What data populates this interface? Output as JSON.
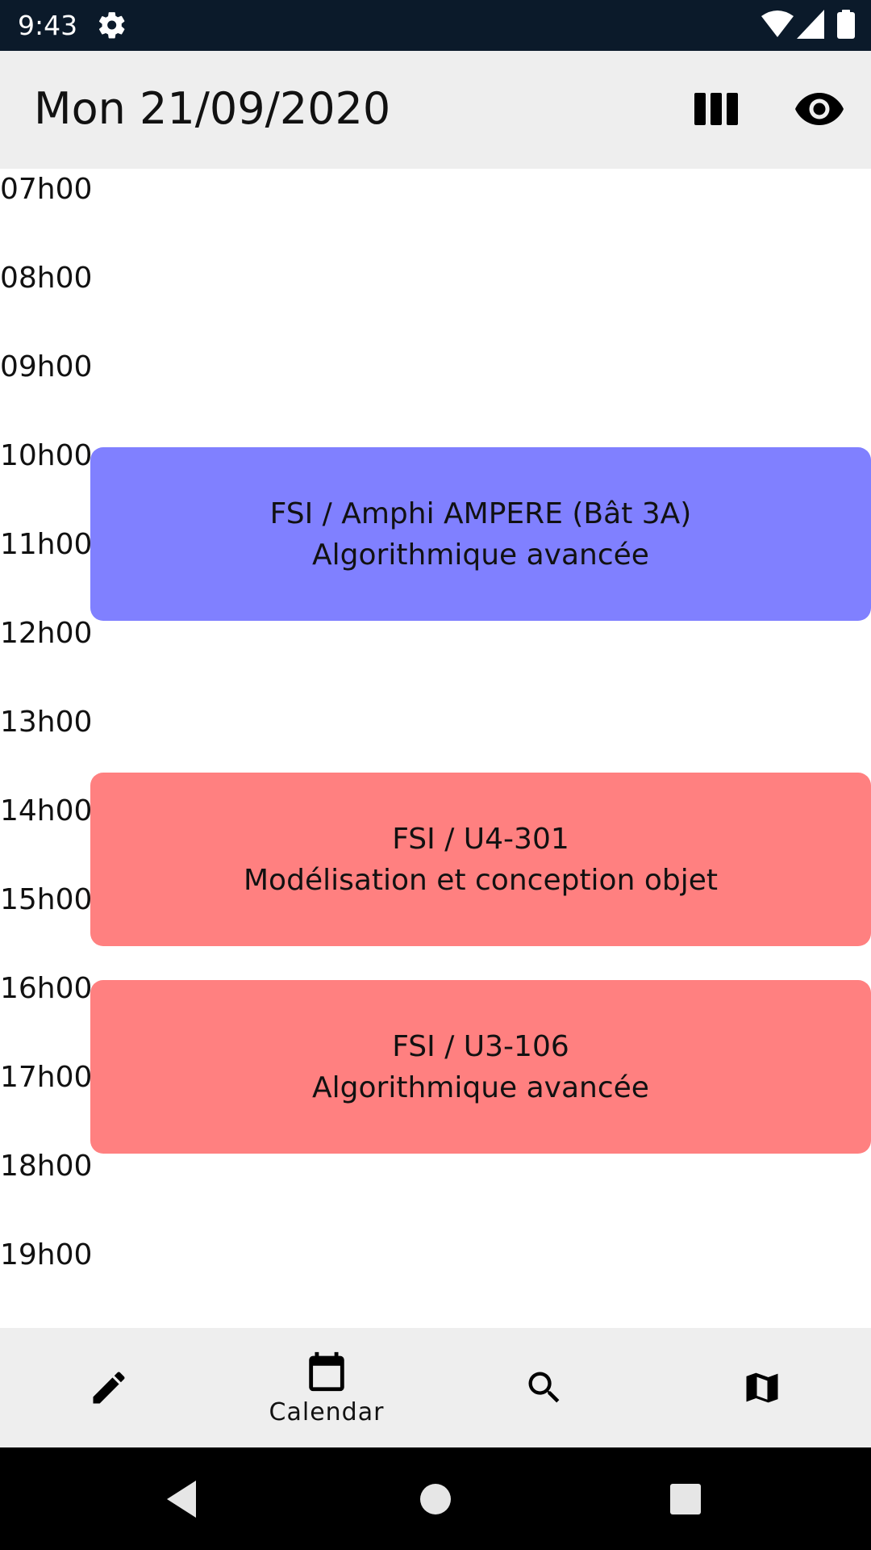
{
  "status_bar": {
    "time": "9:43",
    "icons": [
      "gear-icon",
      "wifi-icon",
      "signal-icon",
      "battery-icon"
    ]
  },
  "app_bar": {
    "title": "Mon 21/09/2020",
    "actions": [
      "columns-icon",
      "eye-icon"
    ]
  },
  "schedule": {
    "hours": [
      "07h00",
      "08h00",
      "09h00",
      "10h00",
      "11h00",
      "12h00",
      "13h00",
      "14h00",
      "15h00",
      "16h00",
      "17h00",
      "18h00",
      "19h00"
    ],
    "events": [
      {
        "room": "FSI / Amphi AMPERE (Bât 3A)",
        "course": "Algorithmique avancée",
        "color": "#8080ff"
      },
      {
        "room": "FSI / U4-301",
        "course": "Modélisation et conception objet",
        "color": "#ff8080"
      },
      {
        "room": "FSI / U3-106",
        "course": "Algorithmique avancée",
        "color": "#ff8080"
      }
    ]
  },
  "bottom_nav": {
    "items": [
      {
        "icon": "pencil-icon",
        "label": ""
      },
      {
        "icon": "calendar-icon",
        "label": "Calendar"
      },
      {
        "icon": "search-icon",
        "label": ""
      },
      {
        "icon": "map-icon",
        "label": ""
      }
    ],
    "active": "Calendar"
  },
  "colors": {
    "status_bar": "#0b1a2a",
    "app_bar": "#eeeeee",
    "bottom_nav": "#eeeeee",
    "event_blue": "#8080ff",
    "event_red": "#ff8080"
  }
}
